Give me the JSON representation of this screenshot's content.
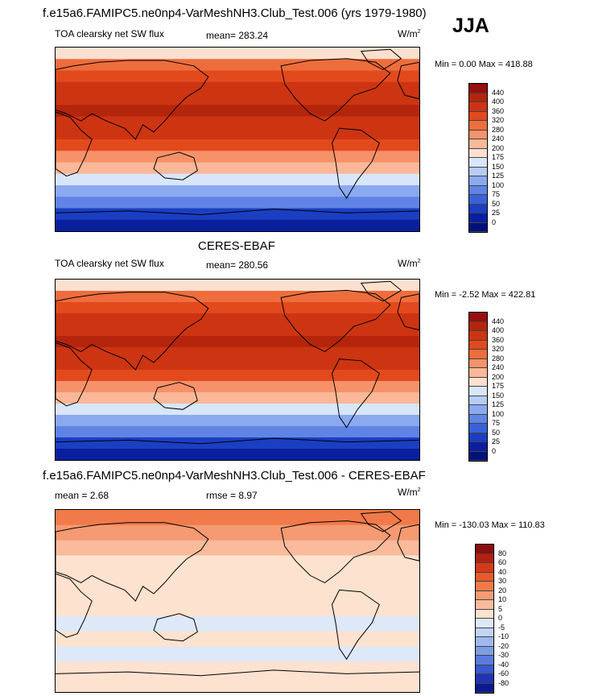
{
  "figure": {
    "main_title": "f.e15a6.FAMIPC5.ne0np4-VarMeshNH3.Club_Test.006 (yrs 1979-1980)",
    "season": "JJA",
    "diff_title": "f.e15a6.FAMIPC5.ne0np4-VarMeshNH3.Club_Test.006 - CERES-EBAF",
    "obs_title": "CERES-EBAF"
  },
  "panel1": {
    "variable": "TOA clearsky net SW flux",
    "mean": "mean= 283.24",
    "units": "W/m",
    "units_sup": "2",
    "minmax": "Min =   0.00 Max = 418.88"
  },
  "panel2": {
    "variable": "TOA clearsky net SW flux",
    "mean": "mean= 280.56",
    "units": "W/m",
    "units_sup": "2",
    "minmax": "Min =  -2.52 Max = 422.81"
  },
  "panel3": {
    "mean": "mean =   2.68",
    "rmse": "rmse =   8.97",
    "units": "W/m",
    "units_sup": "2",
    "minmax": "Min = -130.03 Max = 110.83"
  },
  "chart_data": [
    {
      "type": "heatmap",
      "title": "TOA clearsky net SW flux",
      "season": "JJA",
      "mean": 283.24,
      "min": 0.0,
      "max": 418.88,
      "units": "W/m2",
      "colorbar_levels": [
        "440",
        "400",
        "360",
        "320",
        "280",
        "240",
        "200",
        "175",
        "150",
        "125",
        "100",
        "75",
        "50",
        "25",
        "0"
      ],
      "colorbar_colors": [
        "#960e0e",
        "#b4250b",
        "#cd3412",
        "#e24a1e",
        "#ee6d3d",
        "#f6926a",
        "#fab898",
        "#fce0cf",
        "#d8e6fb",
        "#b6ccf6",
        "#8ba9ef",
        "#5f84e6",
        "#3a62d8",
        "#1a3fc3",
        "#0a1f9e",
        "#03107c"
      ],
      "zonal_band_values_top_to_bottom": [
        180,
        300,
        330,
        360,
        385,
        400,
        390,
        360,
        320,
        260,
        200,
        160,
        120,
        80,
        30,
        0
      ]
    },
    {
      "type": "heatmap",
      "title": "TOA clearsky net SW flux",
      "subtitle": "CERES-EBAF",
      "mean": 280.56,
      "min": -2.52,
      "max": 422.81,
      "units": "W/m2",
      "colorbar_levels": [
        "440",
        "400",
        "360",
        "320",
        "280",
        "240",
        "200",
        "175",
        "150",
        "125",
        "100",
        "75",
        "50",
        "25",
        "0"
      ],
      "zonal_band_values_top_to_bottom": [
        180,
        300,
        330,
        360,
        385,
        400,
        390,
        360,
        320,
        260,
        200,
        160,
        120,
        80,
        30,
        0
      ]
    },
    {
      "type": "heatmap",
      "title": "f.e15a6.FAMIPC5.ne0np4-VarMeshNH3.Club_Test.006 - CERES-EBAF",
      "mean": 2.68,
      "rmse": 8.97,
      "min": -130.03,
      "max": 110.83,
      "units": "W/m2",
      "colorbar_levels": [
        "80",
        "60",
        "40",
        "30",
        "20",
        "10",
        "5",
        "0",
        "-5",
        "-10",
        "-20",
        "-30",
        "-40",
        "-60",
        "-80"
      ],
      "colorbar_colors": [
        "#8b0d0d",
        "#b22010",
        "#d33b18",
        "#e65a2a",
        "#f07a4a",
        "#f59a72",
        "#f9bb9c",
        "#fde2cf",
        "#dde8f8",
        "#c0d4f4",
        "#9fb9ef",
        "#7e9de8",
        "#5b7cdd",
        "#3a58cf",
        "#1f35b5",
        "#0b1a8c"
      ],
      "zonal_band_values_top_to_bottom": [
        20,
        10,
        5,
        2,
        0,
        1,
        2,
        -2,
        2,
        -3,
        1,
        0
      ]
    }
  ]
}
